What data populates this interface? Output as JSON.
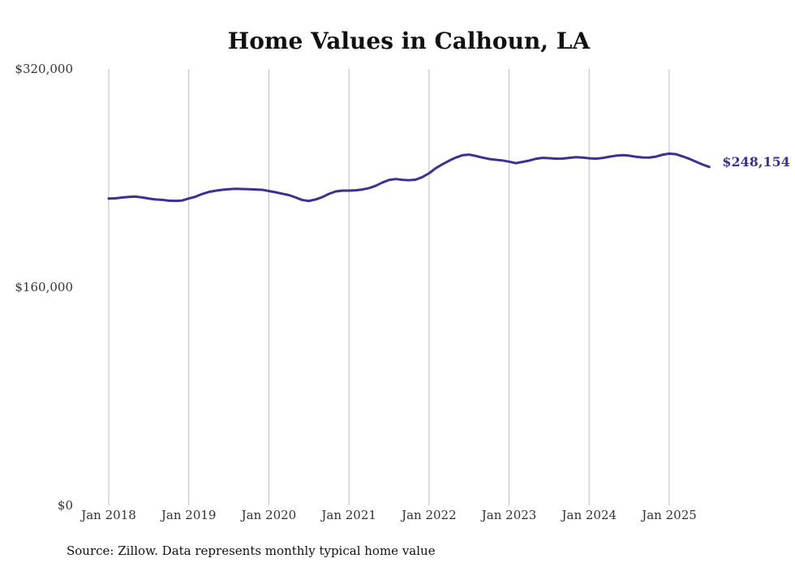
{
  "chart_data": {
    "type": "line",
    "title": "Home Values in Calhoun, LA",
    "xlabel": "",
    "ylabel": "",
    "ylim": [
      0,
      320000
    ],
    "yticks": [
      {
        "value": 0,
        "label": "$0"
      },
      {
        "value": 160000,
        "label": "$160,000"
      },
      {
        "value": 320000,
        "label": "$320,000"
      }
    ],
    "xticks": [
      {
        "x": "2018-01",
        "label": "Jan 2018"
      },
      {
        "x": "2019-01",
        "label": "Jan 2019"
      },
      {
        "x": "2020-01",
        "label": "Jan 2020"
      },
      {
        "x": "2021-01",
        "label": "Jan 2021"
      },
      {
        "x": "2022-01",
        "label": "Jan 2022"
      },
      {
        "x": "2023-01",
        "label": "Jan 2023"
      },
      {
        "x": "2024-01",
        "label": "Jan 2024"
      },
      {
        "x": "2025-01",
        "label": "Jan 2025"
      }
    ],
    "grid": "vertical",
    "line_color": "#3b3191",
    "x": [
      "2018-01",
      "2018-02",
      "2018-03",
      "2018-04",
      "2018-05",
      "2018-06",
      "2018-07",
      "2018-08",
      "2018-09",
      "2018-10",
      "2018-11",
      "2018-12",
      "2019-01",
      "2019-02",
      "2019-03",
      "2019-04",
      "2019-05",
      "2019-06",
      "2019-07",
      "2019-08",
      "2019-09",
      "2019-10",
      "2019-11",
      "2019-12",
      "2020-01",
      "2020-02",
      "2020-03",
      "2020-04",
      "2020-05",
      "2020-06",
      "2020-07",
      "2020-08",
      "2020-09",
      "2020-10",
      "2020-11",
      "2020-12",
      "2021-01",
      "2021-02",
      "2021-03",
      "2021-04",
      "2021-05",
      "2021-06",
      "2021-07",
      "2021-08",
      "2021-09",
      "2021-10",
      "2021-11",
      "2021-12",
      "2022-01",
      "2022-02",
      "2022-03",
      "2022-04",
      "2022-05",
      "2022-06",
      "2022-07",
      "2022-08",
      "2022-09",
      "2022-10",
      "2022-11",
      "2022-12",
      "2023-01",
      "2023-02",
      "2023-03",
      "2023-04",
      "2023-05",
      "2023-06",
      "2023-07",
      "2023-08",
      "2023-09",
      "2023-10",
      "2023-11",
      "2023-12",
      "2024-01",
      "2024-02",
      "2024-03",
      "2024-04",
      "2024-05",
      "2024-06",
      "2024-07",
      "2024-08",
      "2024-09",
      "2024-10",
      "2024-11",
      "2024-12",
      "2025-01",
      "2025-02",
      "2025-03",
      "2025-04",
      "2025-05",
      "2025-06",
      "2025-07"
    ],
    "series": [
      {
        "values": [
          225000,
          225100,
          225700,
          226200,
          226400,
          225800,
          225000,
          224300,
          224000,
          223400,
          223300,
          223500,
          225000,
          226300,
          228300,
          229800,
          230700,
          231400,
          231800,
          232100,
          232000,
          231800,
          231600,
          231400,
          230500,
          229600,
          228500,
          227500,
          225800,
          223900,
          223200,
          224300,
          226000,
          228400,
          230200,
          230800,
          230800,
          231000,
          231600,
          232600,
          234300,
          236700,
          238600,
          239300,
          238700,
          238400,
          238800,
          240700,
          243500,
          247200,
          250100,
          252700,
          255000,
          256700,
          257200,
          256200,
          255000,
          254000,
          253400,
          252900,
          252000,
          250900,
          251800,
          252800,
          254100,
          254800,
          254600,
          254200,
          254300,
          254800,
          255300,
          255000,
          254500,
          254200,
          254700,
          255600,
          256400,
          256800,
          256400,
          255600,
          255100,
          255000,
          255700,
          257100,
          257900,
          257500,
          255900,
          254100,
          252000,
          249900,
          248154
        ]
      }
    ],
    "end_label": "$248,154",
    "source": "Source: Zillow. Data represents monthly typical home value"
  }
}
